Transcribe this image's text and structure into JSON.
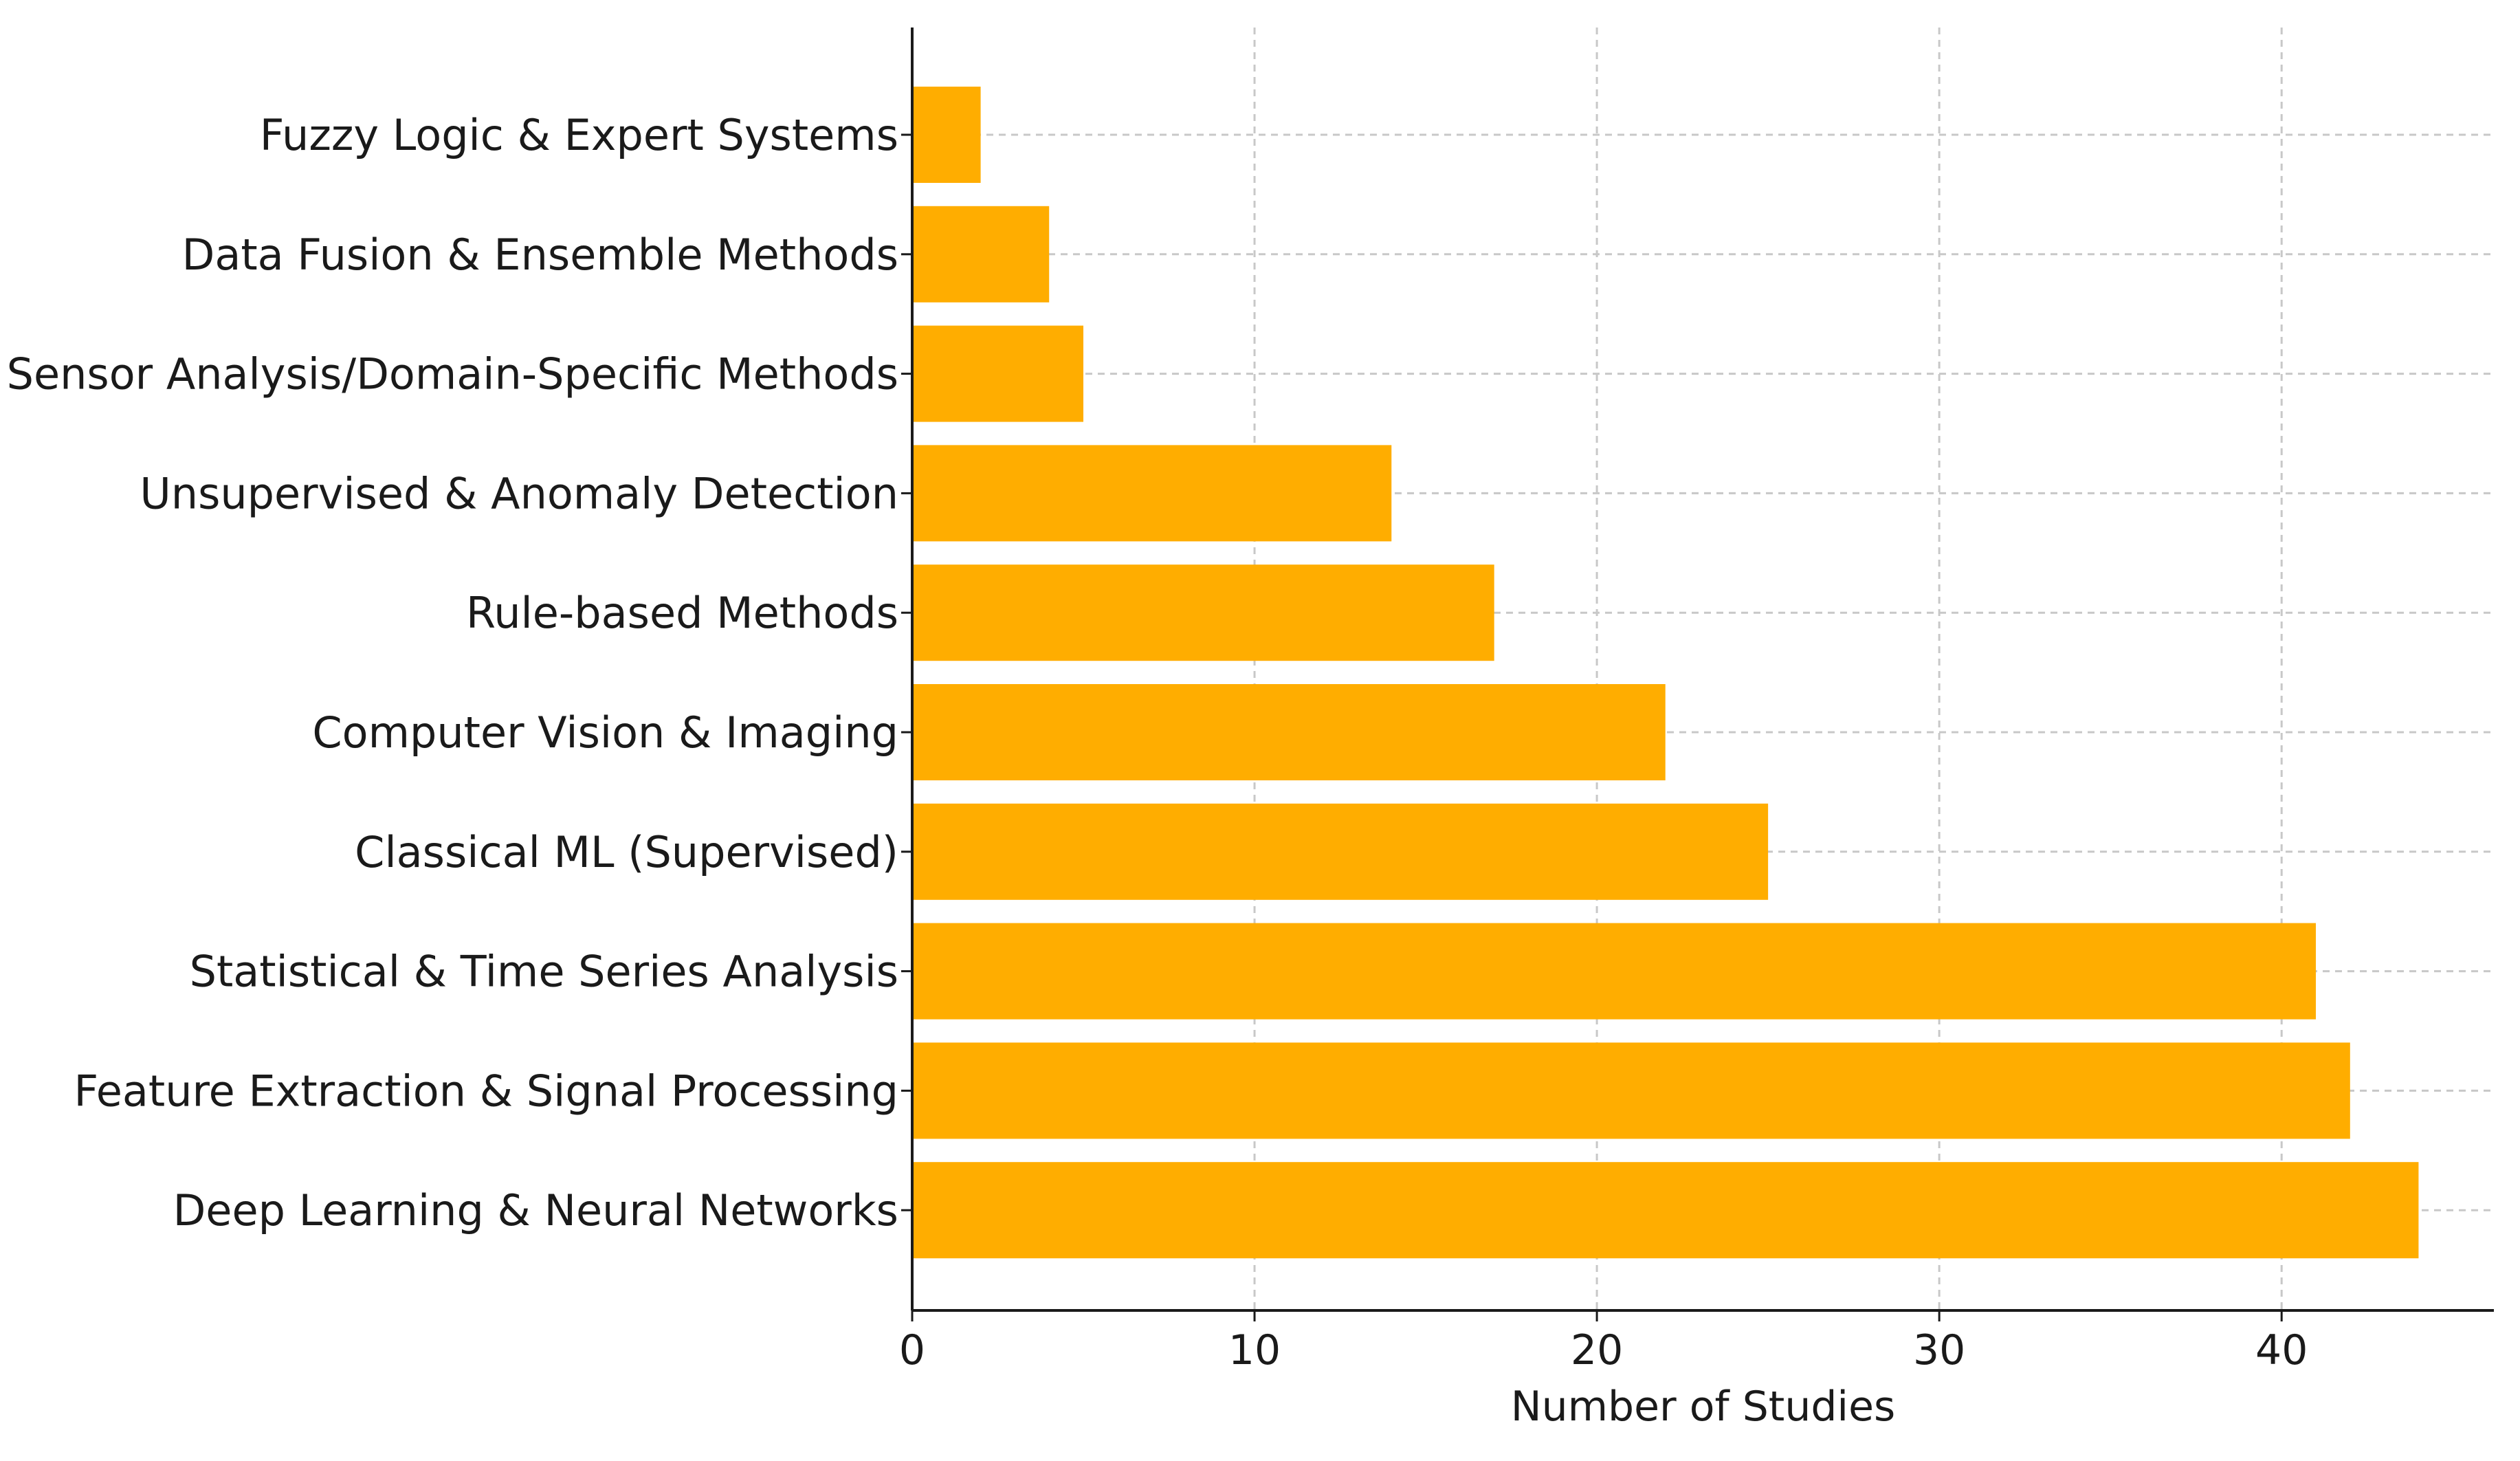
{
  "chart_data": {
    "type": "bar",
    "orientation": "horizontal",
    "title": "",
    "xlabel": "Number of Studies",
    "ylabel": "",
    "categories": [
      "Fuzzy Logic & Expert Systems",
      "Data Fusion & Ensemble Methods",
      "Sensor Analysis/Domain-Specific Methods",
      "Unsupervised & Anomaly Detection",
      "Rule-based Methods",
      "Computer Vision & Imaging",
      "Classical ML (Supervised)",
      "Statistical & Time Series Analysis",
      "Feature Extraction & Signal Processing",
      "Deep Learning & Neural Networks"
    ],
    "values": [
      2,
      4,
      5,
      14,
      17,
      22,
      25,
      41,
      42,
      44
    ],
    "xlim": [
      0,
      46.2
    ],
    "xticks": [
      0,
      10,
      20,
      30,
      40
    ],
    "grid": true,
    "bar_color": "#ffad00",
    "grid_color": "#c8c8c8",
    "axis_color": "#1a1a1a"
  }
}
